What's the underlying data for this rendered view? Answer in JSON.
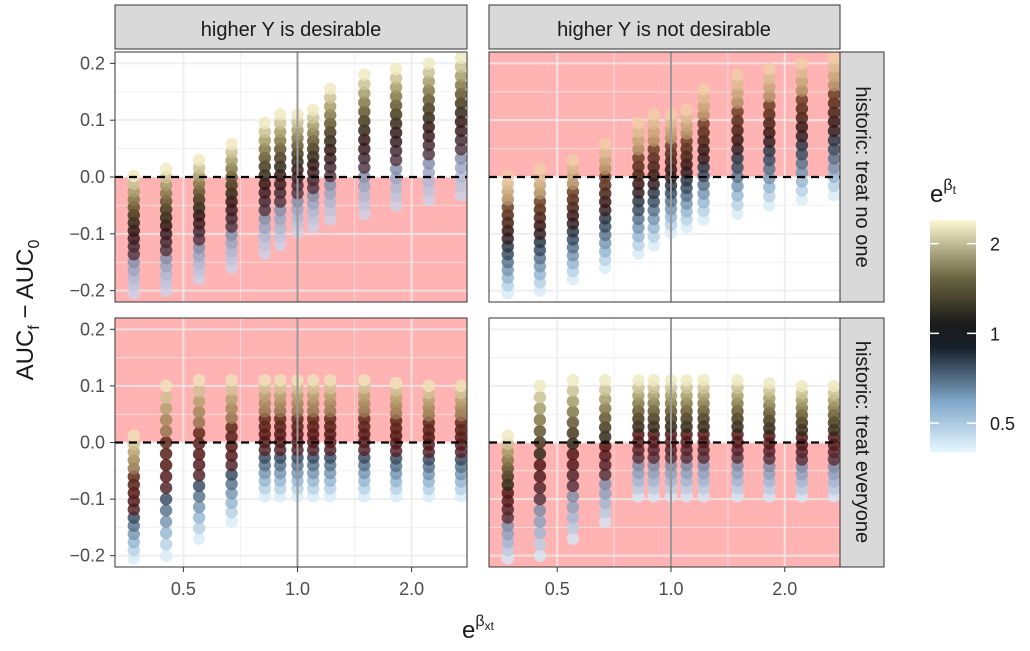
{
  "chart_data": {
    "type": "scatter",
    "facets": {
      "columns": [
        "higher Y is desirable",
        "higher Y is not desirable"
      ],
      "rows": [
        "historic: treat no one",
        "historic: treat everyone"
      ]
    },
    "y_axis": {
      "label": "AUC_f − AUC_0",
      "lim": [
        -0.22,
        0.22
      ],
      "ticks": [
        0.2,
        0.1,
        0.0,
        -0.1,
        -0.2
      ],
      "tick_labels": [
        "0.2",
        "0.1",
        "0.0",
        "−0.1",
        "−0.2"
      ]
    },
    "x_axis": {
      "label": "e^βxt",
      "log_scale": true,
      "lim": [
        0.33,
        2.8
      ],
      "ticks": [
        0.5,
        1.0,
        2.0
      ],
      "tick_labels": [
        "0.5",
        "1.0",
        "2.0"
      ]
    },
    "x_positions": [
      0.37,
      0.45,
      0.55,
      0.67,
      0.82,
      0.9,
      1.0,
      1.1,
      1.22,
      1.5,
      1.82,
      2.22,
      2.7
    ],
    "legend": {
      "title": "e^βt",
      "breaks": [
        2,
        1,
        0.5
      ],
      "labels": [
        "2",
        "1",
        "0.5"
      ],
      "lim": [
        0.4,
        2.4
      ]
    },
    "colors": {
      "reference_line": "#000000",
      "shaded_region": "#ffb3b3",
      "strip_bg": "#d9d9d9",
      "low": "#e6f7ff",
      "mid_low": "#7a9fc2",
      "mid": "#1a1a1a",
      "mid_high": "#4b3518",
      "high": "#fdf7d2",
      "dot_red": "#7a1414",
      "dot_peach": "#f3b08c"
    },
    "shading": [
      {
        "row": 0,
        "col": 0,
        "region": "below_zero"
      },
      {
        "row": 0,
        "col": 1,
        "region": "above_zero"
      },
      {
        "row": 1,
        "col": 0,
        "region": "above_zero"
      },
      {
        "row": 1,
        "col": 1,
        "region": "below_zero"
      }
    ],
    "value_ranges_by_x": {
      "row0_col0": {
        "max": [
          0.002,
          0.014,
          0.03,
          0.058,
          0.095,
          0.11,
          0.11,
          0.118,
          0.155,
          0.18,
          0.19,
          0.2,
          0.21
        ],
        "min": [
          -0.205,
          -0.2,
          -0.18,
          -0.16,
          -0.135,
          -0.12,
          -0.098,
          -0.088,
          -0.075,
          -0.065,
          -0.05,
          -0.04,
          -0.032
        ]
      },
      "row0_col1": {
        "max": [
          0.002,
          0.014,
          0.03,
          0.058,
          0.095,
          0.11,
          0.11,
          0.118,
          0.155,
          0.18,
          0.19,
          0.2,
          0.21
        ],
        "min": [
          -0.205,
          -0.2,
          -0.18,
          -0.16,
          -0.135,
          -0.12,
          -0.098,
          -0.088,
          -0.075,
          -0.065,
          -0.05,
          -0.04,
          -0.032
        ]
      },
      "row1_col0": {
        "max": [
          0.012,
          0.1,
          0.11,
          0.11,
          0.11,
          0.11,
          0.11,
          0.11,
          0.11,
          0.11,
          0.105,
          0.1,
          0.1
        ],
        "min": [
          -0.205,
          -0.2,
          -0.17,
          -0.14,
          -0.095,
          -0.095,
          -0.095,
          -0.095,
          -0.095,
          -0.095,
          -0.095,
          -0.095,
          -0.095
        ]
      },
      "row1_col1": {
        "max": [
          0.012,
          0.1,
          0.11,
          0.11,
          0.11,
          0.11,
          0.11,
          0.11,
          0.11,
          0.11,
          0.105,
          0.1,
          0.1
        ],
        "min": [
          -0.205,
          -0.2,
          -0.17,
          -0.14,
          -0.095,
          -0.095,
          -0.095,
          -0.095,
          -0.095,
          -0.095,
          -0.095,
          -0.095,
          -0.095
        ]
      }
    },
    "grid": true,
    "legend_position": "right"
  }
}
